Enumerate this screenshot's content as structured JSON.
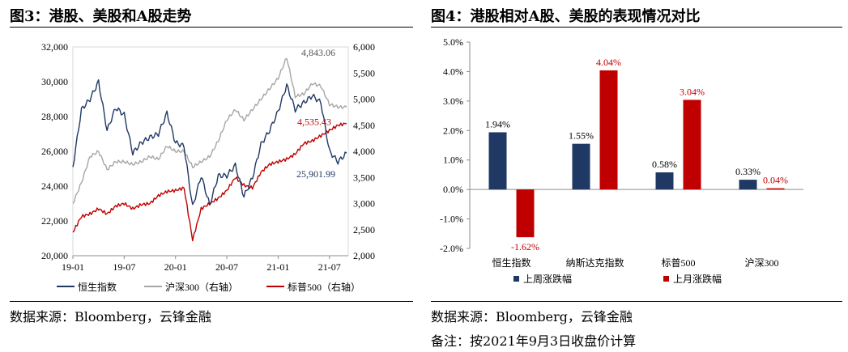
{
  "left": {
    "title": "图3：港股、美股和A股走势",
    "source": "数据来源：Bloomberg，云锋金融"
  },
  "right": {
    "title": "图4：港股相对A股、美股的表现情况对比",
    "source": "数据来源：Bloomberg，云锋金融",
    "note": "备注：按2021年9月3日收盘价计算"
  },
  "colors": {
    "hsi": "#1F3864",
    "csi300": "#A6A6A6",
    "sp500": "#C00000",
    "last_week": "#1F3864",
    "last_month": "#C00000"
  },
  "chart_data": [
    {
      "type": "line",
      "y_left_ticks": [
        "32,000",
        "30,000",
        "28,000",
        "26,000",
        "24,000",
        "22,000",
        "20,000"
      ],
      "y_right_ticks": [
        "6,000",
        "5,500",
        "5,000",
        "4,500",
        "4,000",
        "3,500",
        "3,000",
        "2,500",
        "2,000"
      ],
      "x_ticks": [
        "19-01",
        "19-07",
        "20-01",
        "20-07",
        "21-01",
        "21-07"
      ],
      "ylim_left": [
        20000,
        32000
      ],
      "ylim_right": [
        2000,
        6000
      ],
      "series": [
        {
          "name": "恒生指数",
          "axis": "left",
          "points": [
            [
              "19-01",
              25100
            ],
            [
              "19-02",
              28400
            ],
            [
              "19-03",
              29000
            ],
            [
              "19-04",
              30000
            ],
            [
              "19-05",
              27200
            ],
            [
              "19-06",
              28500
            ],
            [
              "19-07",
              28100
            ],
            [
              "19-08",
              25900
            ],
            [
              "19-09",
              26500
            ],
            [
              "19-10",
              26800
            ],
            [
              "19-11",
              27000
            ],
            [
              "19-12",
              28200
            ],
            [
              "20-01",
              26500
            ],
            [
              "20-02",
              26300
            ],
            [
              "20-03",
              22800
            ],
            [
              "20-04",
              24600
            ],
            [
              "20-05",
              22900
            ],
            [
              "20-06",
              24600
            ],
            [
              "20-07",
              24600
            ],
            [
              "20-08",
              25200
            ],
            [
              "20-09",
              23400
            ],
            [
              "20-10",
              24500
            ],
            [
              "20-11",
              26400
            ],
            [
              "20-12",
              27200
            ],
            [
              "21-01",
              28300
            ],
            [
              "21-02",
              29800
            ],
            [
              "21-03",
              28400
            ],
            [
              "21-04",
              28800
            ],
            [
              "21-05",
              29200
            ],
            [
              "21-06",
              28800
            ],
            [
              "21-07",
              26000
            ],
            [
              "21-08",
              25400
            ],
            [
              "21-09",
              25901.99
            ]
          ]
        },
        {
          "name": "沪深300（右轴）",
          "axis": "right",
          "points": [
            [
              "19-01",
              3000
            ],
            [
              "19-02",
              3400
            ],
            [
              "19-03",
              3900
            ],
            [
              "19-04",
              4000
            ],
            [
              "19-05",
              3650
            ],
            [
              "19-06",
              3800
            ],
            [
              "19-07",
              3800
            ],
            [
              "19-08",
              3750
            ],
            [
              "19-09",
              3800
            ],
            [
              "19-10",
              3900
            ],
            [
              "19-11",
              3850
            ],
            [
              "19-12",
              4100
            ],
            [
              "20-01",
              4000
            ],
            [
              "20-02",
              4000
            ],
            [
              "20-03",
              3700
            ],
            [
              "20-04",
              3800
            ],
            [
              "20-05",
              3900
            ],
            [
              "20-06",
              4200
            ],
            [
              "20-07",
              4600
            ],
            [
              "20-08",
              4800
            ],
            [
              "20-09",
              4600
            ],
            [
              "20-10",
              4800
            ],
            [
              "20-11",
              5000
            ],
            [
              "20-12",
              5200
            ],
            [
              "21-01",
              5400
            ],
            [
              "21-02",
              5800
            ],
            [
              "21-03",
              5050
            ],
            [
              "21-04",
              5100
            ],
            [
              "21-05",
              5300
            ],
            [
              "21-06",
              5250
            ],
            [
              "21-07",
              4900
            ],
            [
              "21-08",
              4850
            ],
            [
              "21-09",
              4843.06
            ]
          ]
        },
        {
          "name": "标普500（右轴）",
          "axis": "right",
          "points": [
            [
              "19-01",
              2450
            ],
            [
              "19-02",
              2750
            ],
            [
              "19-03",
              2800
            ],
            [
              "19-04",
              2900
            ],
            [
              "19-05",
              2800
            ],
            [
              "19-06",
              2950
            ],
            [
              "19-07",
              3000
            ],
            [
              "19-08",
              2900
            ],
            [
              "19-09",
              2980
            ],
            [
              "19-10",
              3000
            ],
            [
              "19-11",
              3150
            ],
            [
              "19-12",
              3230
            ],
            [
              "20-01",
              3250
            ],
            [
              "20-02",
              3300
            ],
            [
              "20-03",
              2300
            ],
            [
              "20-04",
              2900
            ],
            [
              "20-05",
              3000
            ],
            [
              "20-06",
              3100
            ],
            [
              "20-07",
              3250
            ],
            [
              "20-08",
              3500
            ],
            [
              "20-09",
              3350
            ],
            [
              "20-10",
              3300
            ],
            [
              "20-11",
              3600
            ],
            [
              "20-12",
              3750
            ],
            [
              "21-01",
              3800
            ],
            [
              "21-02",
              3850
            ],
            [
              "21-03",
              3950
            ],
            [
              "21-04",
              4150
            ],
            [
              "21-05",
              4200
            ],
            [
              "21-06",
              4300
            ],
            [
              "21-07",
              4400
            ],
            [
              "21-08",
              4500
            ],
            [
              "21-09",
              4535.43
            ]
          ]
        }
      ],
      "annotations": [
        "4,843.06",
        "4,535.43",
        "25,901.99"
      ]
    },
    {
      "type": "bar",
      "categories": [
        "恒生指数",
        "纳斯达克指数",
        "标普500",
        "沪深300"
      ],
      "y_ticks": [
        "5.0%",
        "4.0%",
        "3.0%",
        "2.0%",
        "1.0%",
        "0.0%",
        "-1.0%",
        "-2.0%"
      ],
      "ylim": [
        -2.0,
        5.0
      ],
      "series": [
        {
          "name": "上周涨跌幅",
          "values": [
            1.94,
            1.55,
            0.58,
            0.33
          ],
          "labels": [
            "1.94%",
            "1.55%",
            "0.58%",
            "0.33%"
          ]
        },
        {
          "name": "上月涨跌幅",
          "values": [
            -1.62,
            4.04,
            3.04,
            0.04
          ],
          "labels": [
            "-1.62%",
            "4.04%",
            "3.04%",
            "0.04%"
          ]
        }
      ]
    }
  ]
}
